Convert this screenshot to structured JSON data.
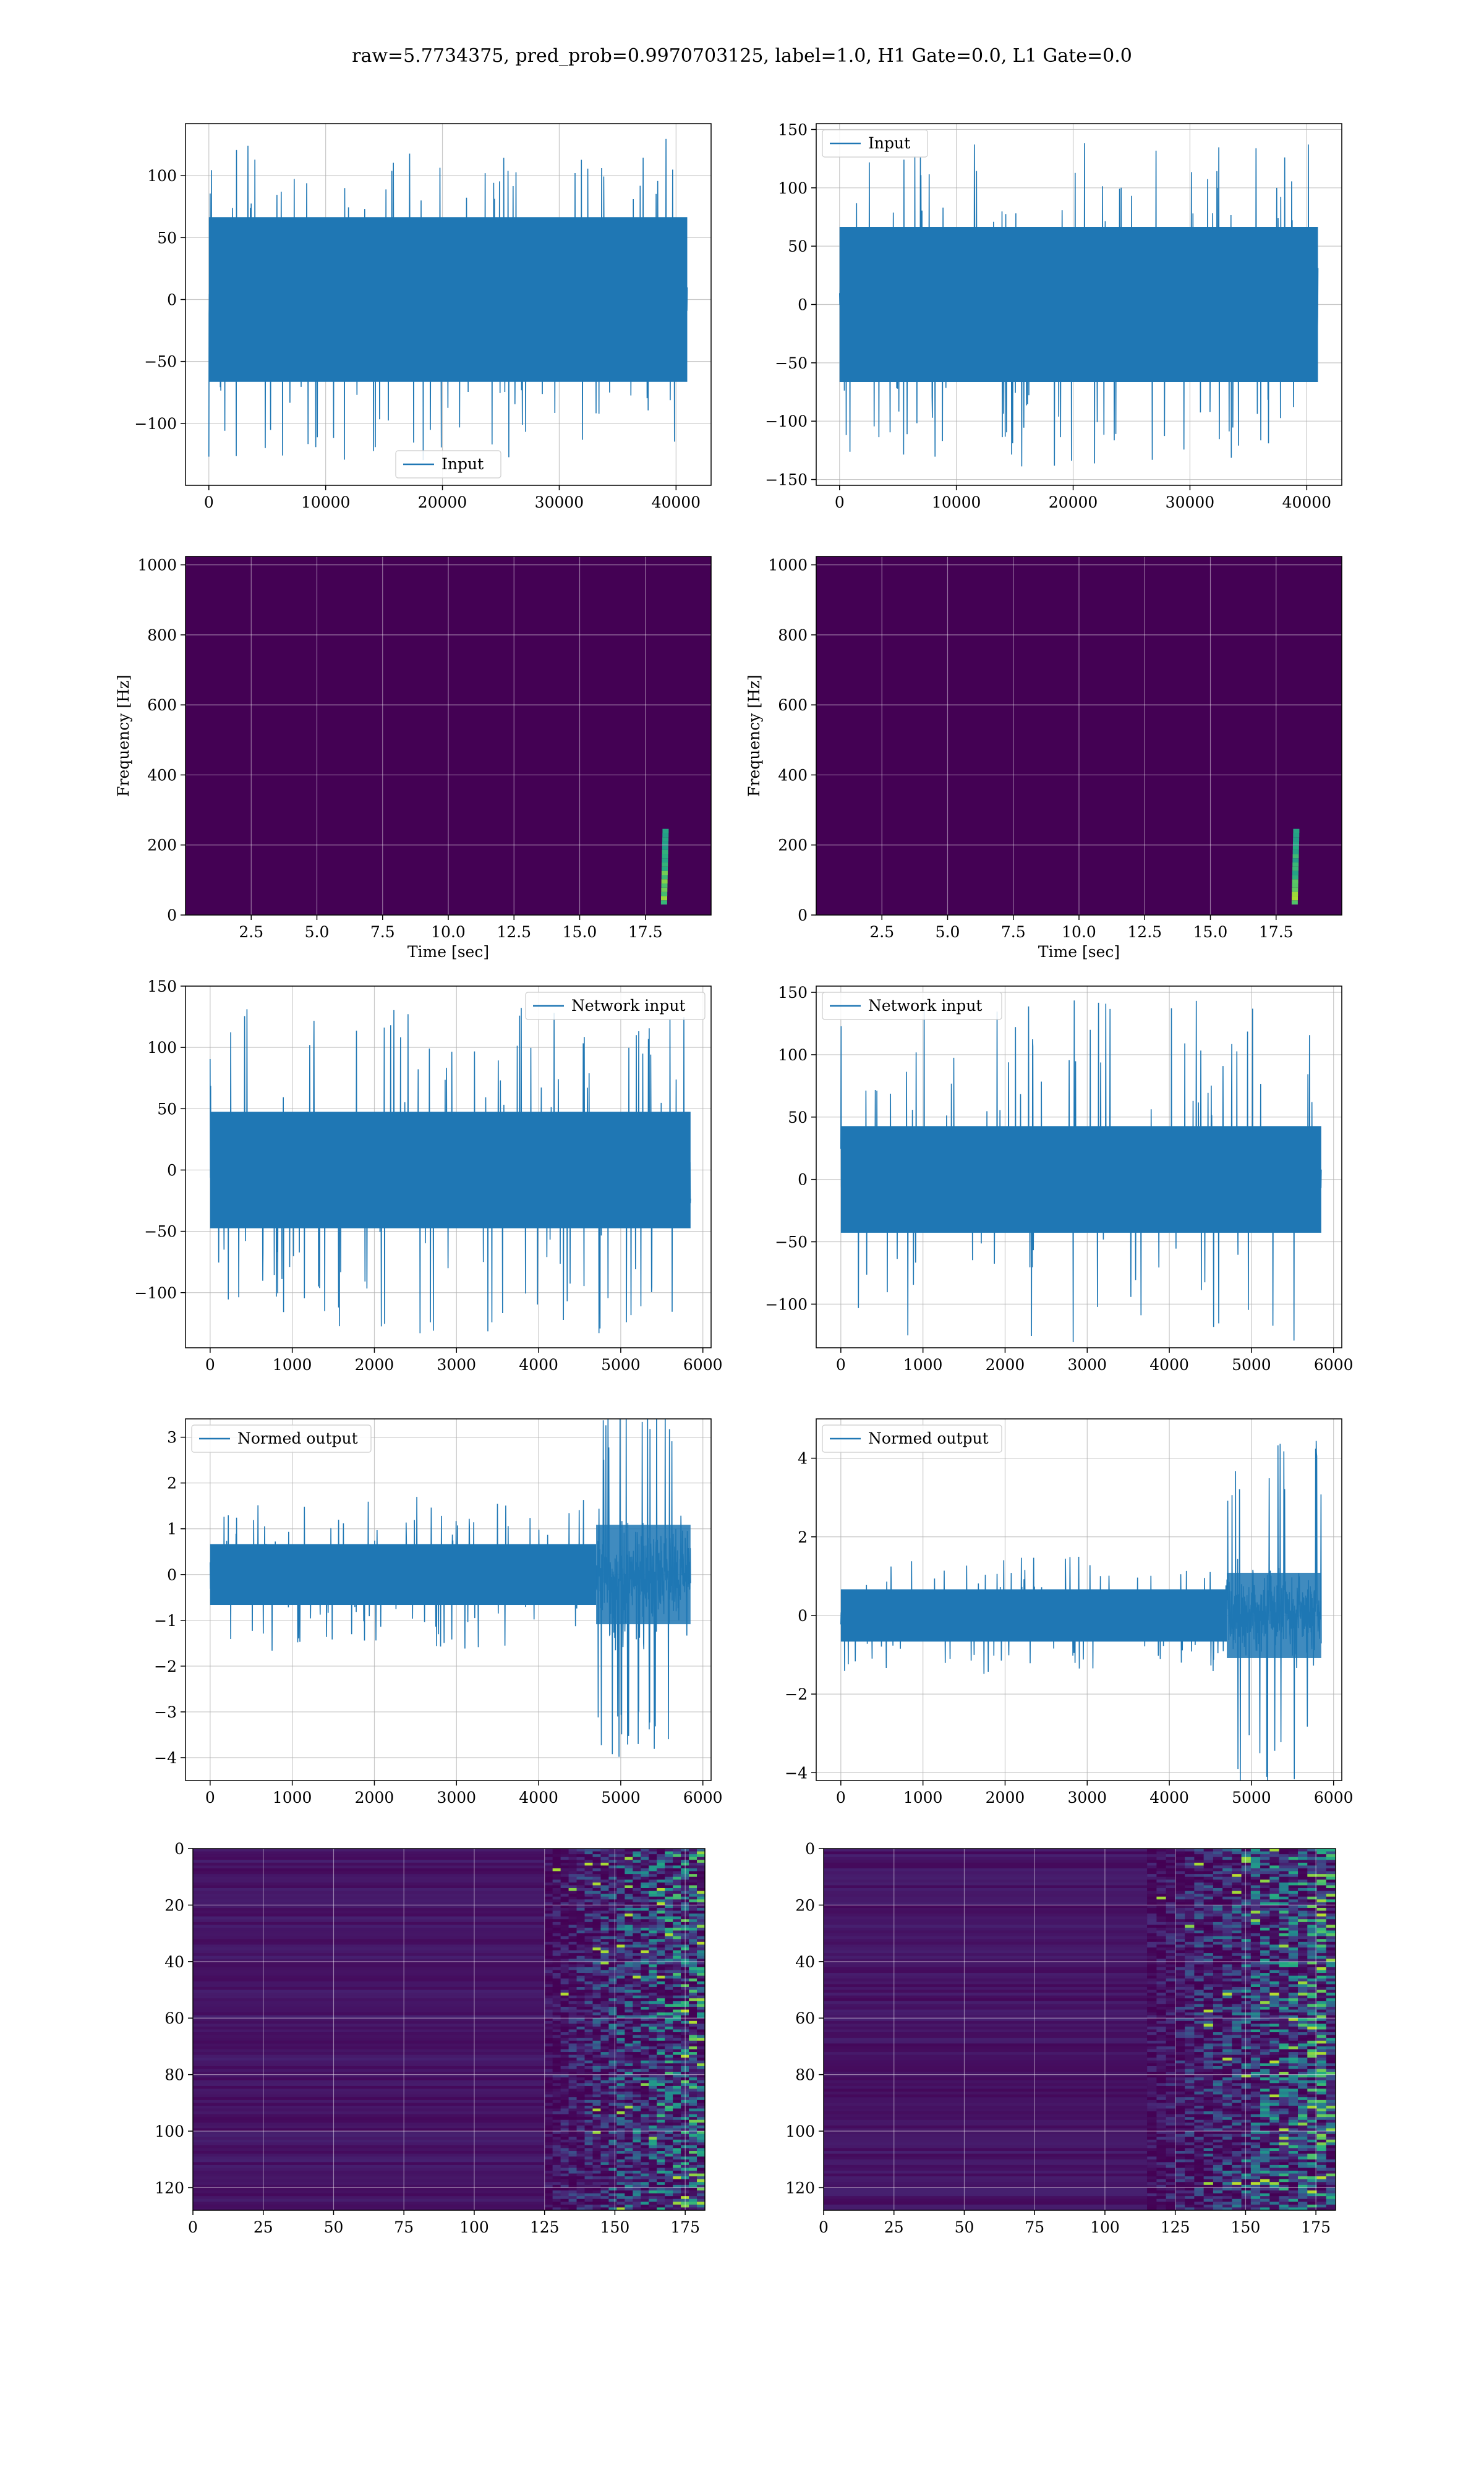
{
  "title": "raw=5.7734375, pred_prob=0.9970703125, label=1.0, H1 Gate=0.0, L1 Gate=0.0",
  "colors": {
    "line": "#1f77b4",
    "grid": "#b0b0b0",
    "bg_dark": "#440154"
  },
  "chart_data": [
    {
      "id": "h1-input",
      "type": "line",
      "series": [
        {
          "name": "Input"
        }
      ],
      "legend_loc": "lower-center",
      "xlim": [
        -2000,
        43000
      ],
      "ylim": [
        -150,
        142
      ],
      "xticks": [
        0,
        10000,
        20000,
        30000,
        40000
      ],
      "yticks": [
        -100,
        -50,
        0,
        50,
        100
      ],
      "x_range": [
        0,
        40960
      ],
      "core_amp": 70,
      "peak_amp": 130
    },
    {
      "id": "l1-input",
      "type": "line",
      "series": [
        {
          "name": "Input"
        }
      ],
      "legend_loc": "upper-left",
      "xlim": [
        -2000,
        43000
      ],
      "ylim": [
        -155,
        155
      ],
      "xticks": [
        0,
        10000,
        20000,
        30000,
        40000
      ],
      "yticks": [
        -150,
        -100,
        -50,
        0,
        50,
        100,
        150
      ],
      "x_range": [
        0,
        40960
      ],
      "core_amp": 70,
      "peak_amp": 140
    },
    {
      "id": "h1-spectrogram",
      "type": "heatmap",
      "xlabel": "Time [sec]",
      "ylabel": "Frequency [Hz]",
      "xlim": [
        0,
        20
      ],
      "ylim": [
        0,
        1024
      ],
      "xticks": [
        2.5,
        5.0,
        7.5,
        10.0,
        12.5,
        15.0,
        17.5
      ],
      "yticks": [
        0,
        200,
        400,
        600,
        800,
        1000
      ],
      "chirp_time": 18.2
    },
    {
      "id": "l1-spectrogram",
      "type": "heatmap",
      "xlabel": "Time [sec]",
      "ylabel": "Frequency [Hz]",
      "xlim": [
        0,
        20
      ],
      "ylim": [
        0,
        1024
      ],
      "xticks": [
        2.5,
        5.0,
        7.5,
        10.0,
        12.5,
        15.0,
        17.5
      ],
      "yticks": [
        0,
        200,
        400,
        600,
        800,
        1000
      ],
      "chirp_time": 18.2
    },
    {
      "id": "h1-network-input",
      "type": "line",
      "series": [
        {
          "name": "Network input"
        }
      ],
      "legend_loc": "upper-right",
      "xlim": [
        -300,
        6100
      ],
      "ylim": [
        -145,
        150
      ],
      "xticks": [
        0,
        1000,
        2000,
        3000,
        4000,
        5000,
        6000
      ],
      "yticks": [
        -100,
        -50,
        0,
        50,
        100,
        150
      ],
      "x_range": [
        0,
        5850
      ],
      "core_amp": 50,
      "peak_amp": 135
    },
    {
      "id": "l1-network-input",
      "type": "line",
      "series": [
        {
          "name": "Network input"
        }
      ],
      "legend_loc": "upper-left",
      "xlim": [
        -300,
        6100
      ],
      "ylim": [
        -135,
        155
      ],
      "xticks": [
        0,
        1000,
        2000,
        3000,
        4000,
        5000,
        6000
      ],
      "yticks": [
        -100,
        -50,
        0,
        50,
        100,
        150
      ],
      "x_range": [
        0,
        5850
      ],
      "core_amp": 45,
      "peak_amp": 145
    },
    {
      "id": "h1-normed-output",
      "type": "line",
      "series": [
        {
          "name": "Normed output"
        }
      ],
      "legend_loc": "upper-left",
      "xlim": [
        -300,
        6100
      ],
      "ylim": [
        -4.5,
        3.4
      ],
      "xticks": [
        0,
        1000,
        2000,
        3000,
        4000,
        5000,
        6000
      ],
      "yticks": [
        -4,
        -3,
        -2,
        -1,
        0,
        1,
        2,
        3
      ],
      "x_range": [
        0,
        5850
      ],
      "core_amp": 0.7,
      "peak_amp": 1.7,
      "burst_start": 4700,
      "burst_amp": 4.1
    },
    {
      "id": "l1-normed-output",
      "type": "line",
      "series": [
        {
          "name": "Normed output"
        }
      ],
      "legend_loc": "upper-left",
      "xlim": [
        -300,
        6100
      ],
      "ylim": [
        -4.2,
        5.0
      ],
      "xticks": [
        0,
        1000,
        2000,
        3000,
        4000,
        5000,
        6000
      ],
      "yticks": [
        -4,
        -2,
        0,
        2,
        4
      ],
      "x_range": [
        0,
        5850
      ],
      "core_amp": 0.7,
      "peak_amp": 1.5,
      "burst_start": 4700,
      "burst_amp": 4.5
    },
    {
      "id": "h1-feature-map",
      "type": "heatmap",
      "xlim": [
        0,
        182
      ],
      "ylim": [
        128,
        0
      ],
      "xticks": [
        0,
        25,
        50,
        75,
        100,
        125,
        150,
        175
      ],
      "yticks": [
        0,
        20,
        40,
        60,
        80,
        100,
        120
      ],
      "active_from": 125
    },
    {
      "id": "l1-feature-map",
      "type": "heatmap",
      "xlim": [
        0,
        182
      ],
      "ylim": [
        128,
        0
      ],
      "xticks": [
        0,
        25,
        50,
        75,
        100,
        125,
        150,
        175
      ],
      "yticks": [
        0,
        20,
        40,
        60,
        80,
        100,
        120
      ],
      "active_from": 115
    }
  ]
}
